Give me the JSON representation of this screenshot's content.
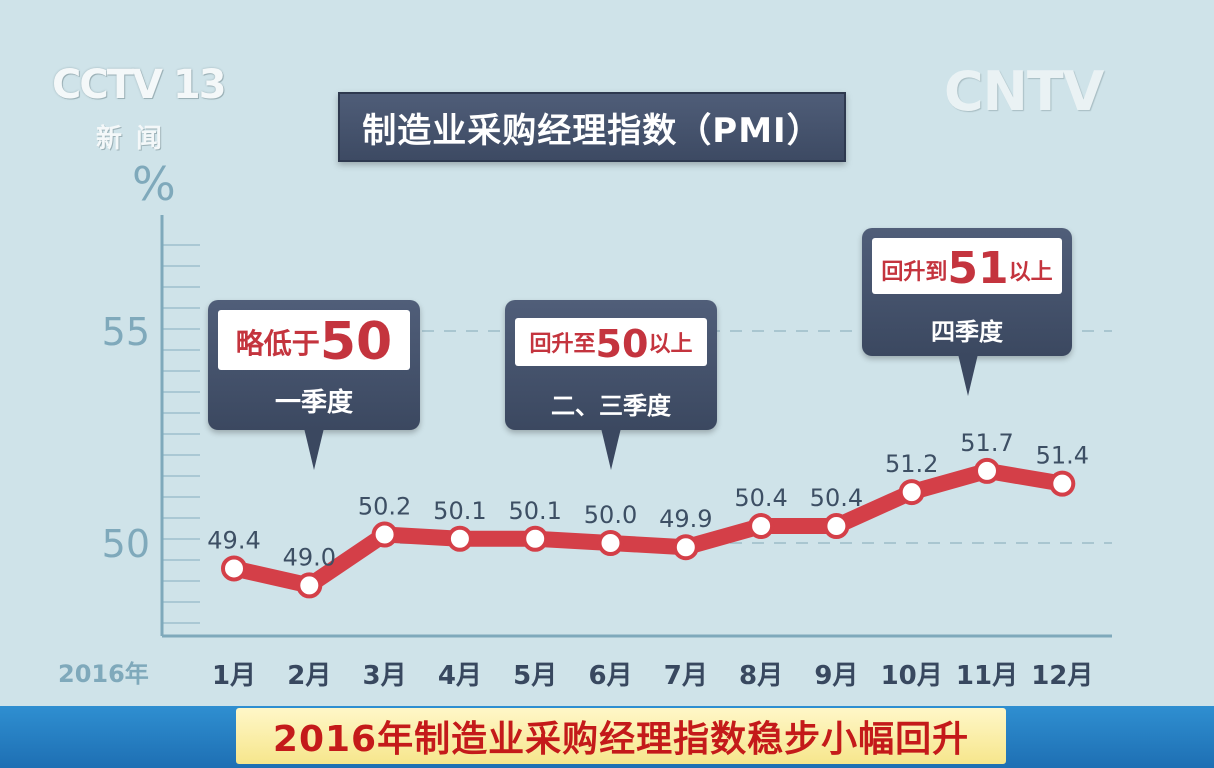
{
  "branding": {
    "channel_logo": "CCTV 13",
    "channel_sub": "新闻",
    "watermark": "CNTV"
  },
  "title": "制造业采购经理指数（PMI）",
  "caption": "2016年制造业采购经理指数稳步小幅回升",
  "colors": {
    "background": "#cfe3e9",
    "line": "#d43f48",
    "axis": "#7fa9bb",
    "callout_bg": "#3f4c65",
    "highlight_red": "#c4343e",
    "caption_red": "#c41a1a"
  },
  "callouts": [
    {
      "highlight_prefix": "略低于",
      "highlight_number": "50",
      "highlight_suffix": "",
      "label": "一季度"
    },
    {
      "highlight_prefix": "回升至",
      "highlight_number": "50",
      "highlight_suffix": "以上",
      "label": "二、三季度"
    },
    {
      "highlight_prefix": "回升到",
      "highlight_number": "51",
      "highlight_suffix": "以上",
      "label": "四季度"
    }
  ],
  "chart_data": {
    "type": "line",
    "title": "制造业采购经理指数（PMI）",
    "ylabel": "%",
    "year_label": "2016年",
    "categories": [
      "1月",
      "2月",
      "3月",
      "4月",
      "5月",
      "6月",
      "7月",
      "8月",
      "9月",
      "10月",
      "11月",
      "12月"
    ],
    "values": [
      49.4,
      49.0,
      50.2,
      50.1,
      50.1,
      50.0,
      49.9,
      50.4,
      50.4,
      51.2,
      51.7,
      51.4
    ],
    "value_labels": [
      "49.4",
      "49.0",
      "50.2",
      "50.1",
      "50.1",
      "50.0",
      "49.9",
      "50.4",
      "50.4",
      "51.2",
      "51.7",
      "51.4"
    ],
    "yticks": [
      "50",
      "55"
    ],
    "reference_lines": [
      50,
      55
    ],
    "grid": false
  }
}
